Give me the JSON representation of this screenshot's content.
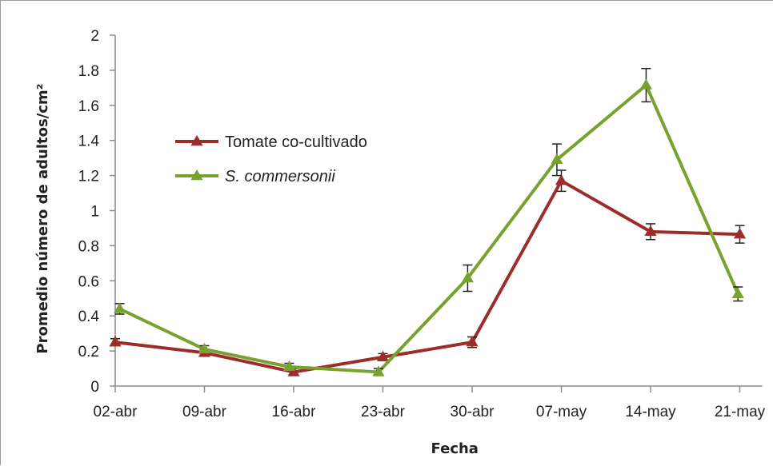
{
  "chart_data": {
    "type": "line",
    "title": "",
    "xlabel": "Fecha",
    "ylabel": "Promedio número de adultos/cm²",
    "categories": [
      "02-abr",
      "09-abr",
      "16-abr",
      "23-abr",
      "30-abr",
      "07-may",
      "14-may",
      "21-may"
    ],
    "ylim": [
      0,
      2
    ],
    "yticks": [
      "0",
      "0.2",
      "0.4",
      "0.6",
      "0.8",
      "1",
      "1.2",
      "1.4",
      "1.6",
      "1.8",
      "2"
    ],
    "grid": false,
    "legend_position": "upper-left",
    "series": [
      {
        "name": "Tomate co-cultivado",
        "italic": false,
        "color": "#9b2d2a",
        "x": [
          0,
          1,
          2,
          3,
          4,
          5,
          6,
          7
        ],
        "values": [
          0.25,
          0.19,
          0.08,
          0.165,
          0.25,
          1.17,
          0.88,
          0.865
        ],
        "errors": [
          0.02,
          0.02,
          0.02,
          0.02,
          0.03,
          0.06,
          0.045,
          0.05
        ]
      },
      {
        "name": "S. commersonii",
        "italic": true,
        "color": "#77a22f",
        "x": [
          0.05,
          1,
          1.95,
          2.95,
          3.95,
          4.95,
          5.95,
          6.98
        ],
        "values": [
          0.44,
          0.21,
          0.11,
          0.08,
          0.615,
          1.29,
          1.715,
          0.525
        ],
        "errors": [
          0.03,
          0.02,
          0.02,
          0.02,
          0.075,
          0.09,
          0.095,
          0.04
        ]
      }
    ]
  }
}
